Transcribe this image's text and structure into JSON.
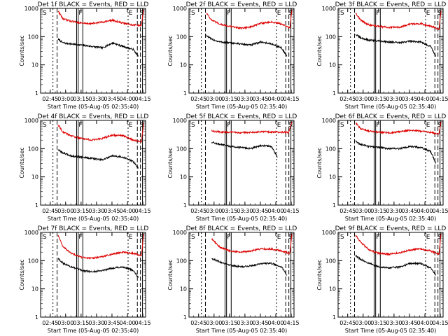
{
  "figure": {
    "xtick_labels": [
      "02:45",
      "03:00",
      "03:15",
      "03:30",
      "03:45",
      "04:00",
      "04:15"
    ],
    "xlabel": "Start Time (05-Aug-05 02:35:40)",
    "ylabel": "Counts/sec",
    "ytick_labels": [
      "1",
      "10",
      "100",
      "1000"
    ],
    "colors": {
      "events": "#000000",
      "lld": "#dd0000",
      "axes": "#000000"
    }
  },
  "chart_data": [
    {
      "type": "line",
      "title": "Det 1f BLACK = Events, RED = LLD",
      "y_scale": "log",
      "ylim": [
        1,
        1000
      ],
      "xlim_minutes_after_start": [
        0,
        102
      ],
      "markers": [
        {
          "label": "S",
          "pos": "left"
        },
        {
          "label": "F",
          "pos": "mid"
        },
        {
          "label": "E",
          "pos": "right"
        },
        {
          "label": "S",
          "pos": "end"
        }
      ],
      "series": [
        {
          "name": "Events",
          "color": "#000000",
          "x": [
            17,
            22,
            30,
            40,
            50,
            60,
            70,
            80,
            90,
            95
          ],
          "y": [
            80,
            60,
            55,
            50,
            45,
            40,
            60,
            45,
            35,
            20
          ]
        },
        {
          "name": "LLD",
          "color": "#dd0000",
          "x": [
            17,
            22,
            30,
            40,
            50,
            60,
            70,
            80,
            90,
            98,
            100
          ],
          "y": [
            800,
            420,
            350,
            300,
            290,
            330,
            380,
            300,
            260,
            250,
            900
          ]
        }
      ]
    },
    {
      "type": "line",
      "title": "Det 2f BLACK = Events, RED = LLD",
      "y_scale": "log",
      "ylim": [
        1,
        1000
      ],
      "xlim_minutes_after_start": [
        0,
        102
      ],
      "markers": [
        {
          "label": "S",
          "pos": "left"
        },
        {
          "label": "F",
          "pos": "mid"
        },
        {
          "label": "E",
          "pos": "right"
        },
        {
          "label": "S",
          "pos": "end"
        }
      ],
      "series": [
        {
          "name": "Events",
          "color": "#000000",
          "x": [
            17,
            22,
            30,
            40,
            50,
            60,
            70,
            80,
            90,
            95
          ],
          "y": [
            110,
            80,
            65,
            60,
            55,
            50,
            65,
            55,
            40,
            20
          ]
        },
        {
          "name": "LLD",
          "color": "#dd0000",
          "x": [
            17,
            22,
            30,
            40,
            50,
            60,
            70,
            80,
            90,
            98,
            100
          ],
          "y": [
            700,
            380,
            280,
            230,
            200,
            220,
            300,
            330,
            280,
            200,
            900
          ]
        }
      ]
    },
    {
      "type": "line",
      "title": "Det 3f BLACK = Events, RED = LLD",
      "y_scale": "log",
      "ylim": [
        1,
        1000
      ],
      "xlim_minutes_after_start": [
        0,
        102
      ],
      "markers": [
        {
          "label": "S",
          "pos": "left"
        },
        {
          "label": "F",
          "pos": "mid"
        },
        {
          "label": "E",
          "pos": "right"
        },
        {
          "label": "S",
          "pos": "end"
        }
      ],
      "series": [
        {
          "name": "Events",
          "color": "#000000",
          "x": [
            17,
            22,
            30,
            40,
            50,
            60,
            70,
            80,
            90,
            95
          ],
          "y": [
            120,
            90,
            75,
            70,
            65,
            60,
            70,
            65,
            45,
            20
          ]
        },
        {
          "name": "LLD",
          "color": "#dd0000",
          "x": [
            17,
            22,
            30,
            40,
            50,
            60,
            70,
            80,
            90,
            98,
            100
          ],
          "y": [
            700,
            380,
            260,
            230,
            210,
            220,
            280,
            290,
            240,
            180,
            800
          ]
        }
      ]
    },
    {
      "type": "line",
      "title": "Det 4f BLACK = Events, RED = LLD",
      "y_scale": "log",
      "ylim": [
        1,
        1000
      ],
      "xlim_minutes_after_start": [
        0,
        102
      ],
      "markers": [
        {
          "label": "S",
          "pos": "left"
        },
        {
          "label": "F",
          "pos": "mid"
        },
        {
          "label": "E",
          "pos": "right"
        },
        {
          "label": "S",
          "pos": "end"
        }
      ],
      "series": [
        {
          "name": "Events",
          "color": "#000000",
          "x": [
            17,
            22,
            30,
            40,
            50,
            60,
            70,
            80,
            90,
            95
          ],
          "y": [
            90,
            70,
            55,
            50,
            45,
            40,
            55,
            50,
            35,
            20
          ]
        },
        {
          "name": "LLD",
          "color": "#dd0000",
          "x": [
            17,
            22,
            30,
            40,
            50,
            60,
            70,
            80,
            90,
            98,
            100
          ],
          "y": [
            700,
            380,
            280,
            230,
            200,
            230,
            300,
            290,
            200,
            180,
            800
          ]
        }
      ]
    },
    {
      "type": "line",
      "title": "Det 5f BLACK = Events, RED = LLD",
      "y_scale": "log",
      "ylim": [
        1,
        1000
      ],
      "xlim_minutes_after_start": [
        0,
        102
      ],
      "markers": [
        {
          "label": "S",
          "pos": "left"
        },
        {
          "label": "F",
          "pos": "mid"
        },
        {
          "label": "E",
          "pos": "right"
        },
        {
          "label": "S",
          "pos": "end"
        }
      ],
      "series": [
        {
          "name": "Events",
          "color": "#000000",
          "x": [
            22,
            30,
            40,
            50,
            60,
            70,
            80,
            86
          ],
          "y": [
            170,
            140,
            120,
            110,
            100,
            130,
            120,
            50
          ]
        },
        {
          "name": "LLD",
          "color": "#dd0000",
          "x": [
            22,
            30,
            40,
            50,
            60,
            70,
            80,
            90,
            97,
            100
          ],
          "y": [
            420,
            390,
            380,
            370,
            380,
            400,
            390,
            380,
            380,
            900
          ]
        }
      ]
    },
    {
      "type": "line",
      "title": "Det 6f BLACK = Events, RED = LLD",
      "y_scale": "log",
      "ylim": [
        1,
        1000
      ],
      "xlim_minutes_after_start": [
        0,
        102
      ],
      "markers": [
        {
          "label": "S",
          "pos": "left"
        },
        {
          "label": "F",
          "pos": "mid"
        },
        {
          "label": "E",
          "pos": "right"
        },
        {
          "label": "S",
          "pos": "end"
        }
      ],
      "series": [
        {
          "name": "Events",
          "color": "#000000",
          "x": [
            17,
            22,
            30,
            40,
            50,
            60,
            70,
            80,
            90,
            95
          ],
          "y": [
            180,
            140,
            120,
            110,
            100,
            100,
            120,
            110,
            80,
            30
          ]
        },
        {
          "name": "LLD",
          "color": "#dd0000",
          "x": [
            17,
            22,
            30,
            40,
            50,
            60,
            70,
            80,
            90,
            98,
            100
          ],
          "y": [
            800,
            500,
            420,
            380,
            360,
            400,
            450,
            420,
            380,
            320,
            900
          ]
        }
      ]
    },
    {
      "type": "line",
      "title": "Det 7f BLACK = Events, RED = LLD",
      "y_scale": "log",
      "ylim": [
        1,
        1000
      ],
      "xlim_minutes_after_start": [
        0,
        102
      ],
      "markers": [
        {
          "label": "S",
          "pos": "left"
        },
        {
          "label": "F",
          "pos": "mid"
        },
        {
          "label": "E",
          "pos": "right"
        },
        {
          "label": "S",
          "pos": "end"
        }
      ],
      "series": [
        {
          "name": "Events",
          "color": "#000000",
          "x": [
            17,
            22,
            30,
            40,
            50,
            60,
            70,
            80,
            90,
            95
          ],
          "y": [
            120,
            80,
            60,
            45,
            40,
            45,
            55,
            60,
            45,
            25
          ]
        },
        {
          "name": "LLD",
          "color": "#dd0000",
          "x": [
            17,
            22,
            30,
            40,
            50,
            60,
            70,
            80,
            90,
            98,
            100
          ],
          "y": [
            800,
            300,
            180,
            130,
            120,
            140,
            170,
            200,
            180,
            150,
            900
          ]
        }
      ]
    },
    {
      "type": "line",
      "title": "Det 8f BLACK = Events, RED = LLD",
      "y_scale": "log",
      "ylim": [
        1,
        1000
      ],
      "xlim_minutes_after_start": [
        0,
        102
      ],
      "markers": [
        {
          "label": "S",
          "pos": "left"
        },
        {
          "label": "F",
          "pos": "mid"
        },
        {
          "label": "E",
          "pos": "right"
        },
        {
          "label": "S",
          "pos": "end"
        }
      ],
      "series": [
        {
          "name": "Events",
          "color": "#000000",
          "x": [
            22,
            30,
            40,
            50,
            60,
            70,
            80,
            90,
            95
          ],
          "y": [
            120,
            90,
            70,
            60,
            65,
            80,
            80,
            60,
            30
          ]
        },
        {
          "name": "LLD",
          "color": "#dd0000",
          "x": [
            22,
            30,
            40,
            50,
            60,
            70,
            80,
            90,
            98,
            100
          ],
          "y": [
            600,
            300,
            220,
            200,
            220,
            260,
            260,
            220,
            180,
            900
          ]
        }
      ]
    },
    {
      "type": "line",
      "title": "Det 9f BLACK = Events, RED = LLD",
      "y_scale": "log",
      "ylim": [
        1,
        1000
      ],
      "xlim_minutes_after_start": [
        0,
        102
      ],
      "markers": [
        {
          "label": "S",
          "pos": "left"
        },
        {
          "label": "F",
          "pos": "mid"
        },
        {
          "label": "E",
          "pos": "right"
        },
        {
          "label": "S",
          "pos": "end"
        }
      ],
      "series": [
        {
          "name": "Events",
          "color": "#000000",
          "x": [
            17,
            22,
            30,
            40,
            50,
            60,
            70,
            80,
            90,
            95
          ],
          "y": [
            150,
            110,
            80,
            60,
            55,
            60,
            80,
            80,
            55,
            30
          ]
        },
        {
          "name": "LLD",
          "color": "#dd0000",
          "x": [
            17,
            22,
            30,
            40,
            50,
            60,
            70,
            80,
            90,
            98,
            100
          ],
          "y": [
            800,
            450,
            240,
            180,
            170,
            190,
            240,
            260,
            220,
            170,
            900
          ]
        }
      ]
    }
  ]
}
